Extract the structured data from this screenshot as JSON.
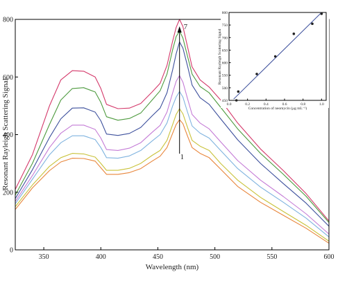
{
  "chart_data": [
    {
      "type": "line",
      "xlabel": "Wavelength (nm)",
      "ylabel": "Resonant Rayleigh Scattering Signal",
      "xlim": [
        325,
        600
      ],
      "ylim": [
        0,
        800
      ],
      "xticks": [
        350,
        400,
        450,
        500,
        550,
        600
      ],
      "yticks": [
        0,
        200,
        400,
        600,
        800
      ],
      "annotations": {
        "arrow_wavelength": 469,
        "top_label": "7",
        "bottom_label": "1"
      },
      "series": [
        {
          "color": "#e8853a",
          "points": [
            [
              325,
              140
            ],
            [
              340,
              215
            ],
            [
              355,
              275
            ],
            [
              365,
              305
            ],
            [
              375,
              318
            ],
            [
              385,
              317
            ],
            [
              395,
              308
            ],
            [
              400,
              285
            ],
            [
              405,
              262
            ],
            [
              415,
              262
            ],
            [
              425,
              268
            ],
            [
              435,
              282
            ],
            [
              445,
              308
            ],
            [
              452,
              325
            ],
            [
              458,
              355
            ],
            [
              463,
              405
            ],
            [
              466,
              435
            ],
            [
              469,
              452
            ],
            [
              472,
              438
            ],
            [
              476,
              395
            ],
            [
              480,
              355
            ],
            [
              487,
              335
            ],
            [
              495,
              320
            ],
            [
              505,
              280
            ],
            [
              520,
              220
            ],
            [
              540,
              165
            ],
            [
              560,
              120
            ],
            [
              580,
              75
            ],
            [
              600,
              23
            ]
          ]
        },
        {
          "color": "#c9c23a",
          "points": [
            [
              325,
              150
            ],
            [
              340,
              225
            ],
            [
              355,
              290
            ],
            [
              365,
              320
            ],
            [
              375,
              335
            ],
            [
              385,
              333
            ],
            [
              395,
              322
            ],
            [
              400,
              300
            ],
            [
              405,
              276
            ],
            [
              415,
              276
            ],
            [
              425,
              283
            ],
            [
              435,
              300
            ],
            [
              445,
              328
            ],
            [
              452,
              345
            ],
            [
              458,
              380
            ],
            [
              463,
              435
            ],
            [
              466,
              470
            ],
            [
              469,
              490
            ],
            [
              472,
              472
            ],
            [
              476,
              425
            ],
            [
              480,
              380
            ],
            [
              487,
              360
            ],
            [
              495,
              345
            ],
            [
              505,
              300
            ],
            [
              520,
              242
            ],
            [
              540,
              182
            ],
            [
              560,
              133
            ],
            [
              580,
              85
            ],
            [
              600,
              30
            ]
          ]
        },
        {
          "color": "#7fb3df",
          "points": [
            [
              325,
              160
            ],
            [
              340,
              245
            ],
            [
              355,
              330
            ],
            [
              365,
              372
            ],
            [
              375,
              396
            ],
            [
              385,
              396
            ],
            [
              395,
              383
            ],
            [
              400,
              355
            ],
            [
              405,
              320
            ],
            [
              415,
              318
            ],
            [
              425,
              326
            ],
            [
              435,
              345
            ],
            [
              445,
              378
            ],
            [
              452,
              400
            ],
            [
              458,
              440
            ],
            [
              463,
              500
            ],
            [
              466,
              530
            ],
            [
              469,
              550
            ],
            [
              472,
              530
            ],
            [
              476,
              478
            ],
            [
              480,
              430
            ],
            [
              487,
              405
            ],
            [
              495,
              388
            ],
            [
              505,
              345
            ],
            [
              520,
              282
            ],
            [
              540,
              218
            ],
            [
              560,
              165
            ],
            [
              580,
              110
            ],
            [
              600,
              45
            ]
          ]
        },
        {
          "color": "#c47bd6",
          "points": [
            [
              325,
              168
            ],
            [
              340,
              258
            ],
            [
              355,
              355
            ],
            [
              365,
              405
            ],
            [
              375,
              433
            ],
            [
              385,
              433
            ],
            [
              395,
              418
            ],
            [
              400,
              388
            ],
            [
              405,
              348
            ],
            [
              415,
              345
            ],
            [
              425,
              353
            ],
            [
              435,
              372
            ],
            [
              445,
              408
            ],
            [
              452,
              432
            ],
            [
              458,
              478
            ],
            [
              463,
              545
            ],
            [
              466,
              585
            ],
            [
              469,
              605
            ],
            [
              472,
              582
            ],
            [
              476,
              525
            ],
            [
              480,
              470
            ],
            [
              487,
              440
            ],
            [
              495,
              420
            ],
            [
              505,
              375
            ],
            [
              520,
              310
            ],
            [
              540,
              242
            ],
            [
              560,
              185
            ],
            [
              580,
              125
            ],
            [
              600,
              55
            ]
          ]
        },
        {
          "color": "#3c4f9c",
          "points": [
            [
              325,
              178
            ],
            [
              340,
              278
            ],
            [
              355,
              390
            ],
            [
              365,
              455
            ],
            [
              375,
              492
            ],
            [
              385,
              493
            ],
            [
              395,
              478
            ],
            [
              400,
              448
            ],
            [
              405,
              402
            ],
            [
              415,
              397
            ],
            [
              425,
              404
            ],
            [
              435,
              425
            ],
            [
              445,
              465
            ],
            [
              452,
              492
            ],
            [
              458,
              545
            ],
            [
              463,
              625
            ],
            [
              466,
              680
            ],
            [
              469,
              722
            ],
            [
              472,
              700
            ],
            [
              476,
              638
            ],
            [
              480,
              572
            ],
            [
              487,
              528
            ],
            [
              495,
              505
            ],
            [
              505,
              455
            ],
            [
              520,
              382
            ],
            [
              540,
              300
            ],
            [
              560,
              230
            ],
            [
              580,
              162
            ],
            [
              600,
              82
            ]
          ]
        },
        {
          "color": "#4d9a3e",
          "points": [
            [
              325,
              190
            ],
            [
              340,
              300
            ],
            [
              355,
              435
            ],
            [
              365,
              520
            ],
            [
              375,
              560
            ],
            [
              385,
              563
            ],
            [
              395,
              548
            ],
            [
              400,
              512
            ],
            [
              405,
              462
            ],
            [
              415,
              450
            ],
            [
              425,
              456
            ],
            [
              435,
              475
            ],
            [
              445,
              520
            ],
            [
              452,
              552
            ],
            [
              458,
              610
            ],
            [
              463,
              695
            ],
            [
              466,
              740
            ],
            [
              469,
              760
            ],
            [
              472,
              735
            ],
            [
              476,
              672
            ],
            [
              480,
              610
            ],
            [
              487,
              567
            ],
            [
              495,
              545
            ],
            [
              505,
              495
            ],
            [
              520,
              420
            ],
            [
              540,
              335
            ],
            [
              560,
              262
            ],
            [
              580,
              186
            ],
            [
              600,
              95
            ]
          ]
        },
        {
          "color": "#d4386a",
          "points": [
            [
              325,
              210
            ],
            [
              340,
              330
            ],
            [
              355,
              500
            ],
            [
              365,
              590
            ],
            [
              375,
              622
            ],
            [
              385,
              620
            ],
            [
              395,
              600
            ],
            [
              400,
              560
            ],
            [
              405,
              505
            ],
            [
              415,
              490
            ],
            [
              425,
              492
            ],
            [
              435,
              508
            ],
            [
              445,
              548
            ],
            [
              452,
              578
            ],
            [
              458,
              640
            ],
            [
              463,
              725
            ],
            [
              466,
              772
            ],
            [
              469,
              800
            ],
            [
              472,
              775
            ],
            [
              476,
              705
            ],
            [
              480,
              635
            ],
            [
              487,
              590
            ],
            [
              495,
              565
            ],
            [
              505,
              520
            ],
            [
              520,
              440
            ],
            [
              540,
              350
            ],
            [
              560,
              275
            ],
            [
              580,
              195
            ],
            [
              600,
              100
            ]
          ]
        }
      ]
    },
    {
      "type": "scatter",
      "xlabel": "Concentration of neomycin (μg mL⁻¹)",
      "ylabel": "Resonant Rayleigh Scattering Signal",
      "xlim": [
        0.0,
        1.05
      ],
      "ylim": [
        450,
        800
      ],
      "xticks": [
        0.0,
        0.2,
        0.4,
        0.6,
        0.8,
        1.0
      ],
      "xtick_labels": [
        "0.0",
        "0.2",
        "0.4",
        "0.6",
        "0.8",
        "1.0"
      ],
      "yticks": [
        450,
        500,
        550,
        600,
        650,
        700,
        750,
        800
      ],
      "points": [
        [
          0.08,
          450
        ],
        [
          0.1,
          485
        ],
        [
          0.3,
          555
        ],
        [
          0.5,
          625
        ],
        [
          0.7,
          715
        ],
        [
          0.9,
          755
        ],
        [
          1.0,
          795
        ]
      ],
      "fit_line": [
        [
          0.05,
          455
        ],
        [
          1.0,
          800
        ]
      ],
      "point_color": "#222222",
      "line_color": "#3c4f9c"
    }
  ]
}
